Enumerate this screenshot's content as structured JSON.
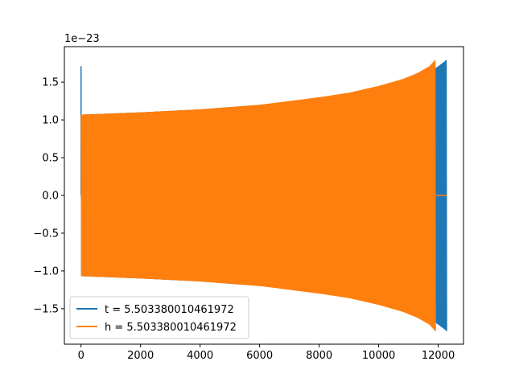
{
  "chart_data": {
    "type": "line",
    "title": "",
    "xlabel": "",
    "ylabel": "",
    "offset_text": "1e−23",
    "xlim": [
      -560,
      12850
    ],
    "ylim": [
      -1.97,
      1.97
    ],
    "xticks": [
      0,
      2000,
      4000,
      6000,
      8000,
      10000,
      12000
    ],
    "xtick_labels": [
      "0",
      "2000",
      "4000",
      "6000",
      "8000",
      "10000",
      "12000"
    ],
    "yticks": [
      -1.5,
      -1.0,
      -0.5,
      0.0,
      0.5,
      1.0,
      1.5
    ],
    "ytick_labels": [
      "−1.5",
      "−1.0",
      "−0.5",
      "0.0",
      "0.5",
      "1.0",
      "1.5"
    ],
    "grid": false,
    "legend_position": "lower-left",
    "series": [
      {
        "name": "t = 5.503380010461972",
        "color": "#1f77b4",
        "envelope": {
          "x": [
            0,
            2000,
            4000,
            6000,
            8000,
            9000,
            10000,
            11000,
            11500,
            11800,
            12000,
            12200,
            12290
          ],
          "upper": [
            1.07,
            1.1,
            1.14,
            1.2,
            1.28,
            1.34,
            1.41,
            1.52,
            1.6,
            1.66,
            1.71,
            1.77,
            1.8
          ],
          "lower": [
            -1.07,
            -1.1,
            -1.14,
            -1.2,
            -1.28,
            -1.34,
            -1.41,
            -1.52,
            -1.6,
            -1.66,
            -1.71,
            -1.77,
            -1.8
          ]
        },
        "spike": {
          "x": 0,
          "y": 1.71
        },
        "end_x": 12290
      },
      {
        "name": "h = 5.503380010461972",
        "color": "#ff7f0e",
        "envelope": {
          "x": [
            0,
            2000,
            4000,
            6000,
            8000,
            9000,
            10000,
            10800,
            11300,
            11700,
            11910
          ],
          "upper": [
            1.07,
            1.1,
            1.14,
            1.2,
            1.3,
            1.36,
            1.45,
            1.54,
            1.62,
            1.71,
            1.8
          ],
          "lower": [
            -1.07,
            -1.1,
            -1.14,
            -1.2,
            -1.3,
            -1.36,
            -1.45,
            -1.54,
            -1.62,
            -1.71,
            -1.8
          ]
        },
        "flat_after": {
          "x": [
            11910,
            12290
          ],
          "y": 0.0
        },
        "end_x": 11910
      }
    ]
  }
}
